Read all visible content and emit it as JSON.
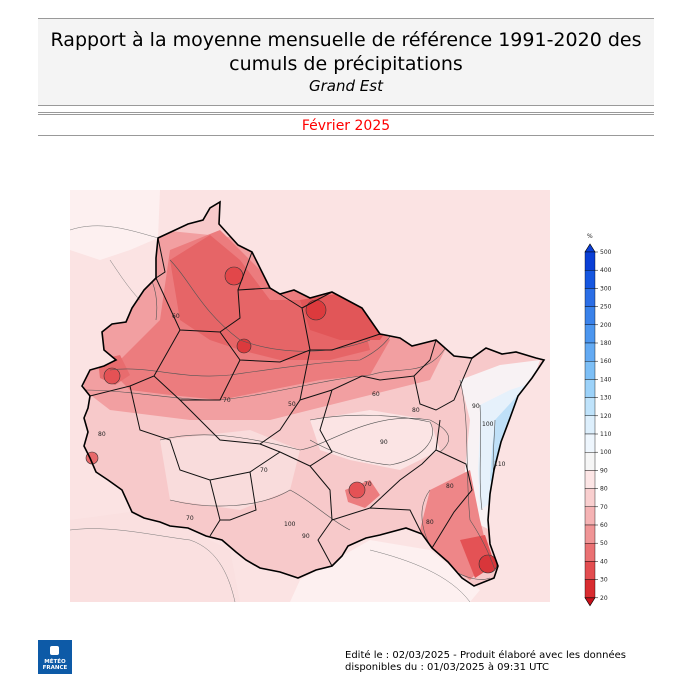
{
  "header": {
    "title": "Rapport à la moyenne mensuelle de référence 1991-2020 des cumuls de précipitations",
    "subtitle": "Grand Est",
    "period": "Février 2025"
  },
  "legend": {
    "unit": "%",
    "levels": [
      500,
      400,
      300,
      250,
      200,
      180,
      160,
      140,
      130,
      120,
      110,
      100,
      90,
      80,
      70,
      60,
      50,
      40,
      30,
      20
    ],
    "colors": [
      "#0a3fd6",
      "#1556e0",
      "#2b6ee6",
      "#3a82ea",
      "#4c96ef",
      "#63aaf3",
      "#7dbff6",
      "#9cd2f9",
      "#bfe3fb",
      "#ddeffc",
      "#eef6fd",
      "#f6f6f6",
      "#fde6e6",
      "#f9cfcf",
      "#f5b3b4",
      "#f09596",
      "#ea7173",
      "#e34d50",
      "#d92c30",
      "#c8101a"
    ]
  },
  "map": {
    "contour_labels": [
      "60",
      "50",
      "70",
      "80",
      "90",
      "100",
      "110",
      "90",
      "80",
      "70",
      "60",
      "70",
      "80",
      "90",
      "100",
      "80",
      "70"
    ]
  },
  "footer": {
    "line1": "Edité le : 02/03/2025 - Produit élaboré avec les données",
    "line2": "disponibles du : 01/03/2025 à 09:31 UTC"
  },
  "logo": {
    "line1": "MÉTÉO",
    "line2": "FRANCE"
  }
}
